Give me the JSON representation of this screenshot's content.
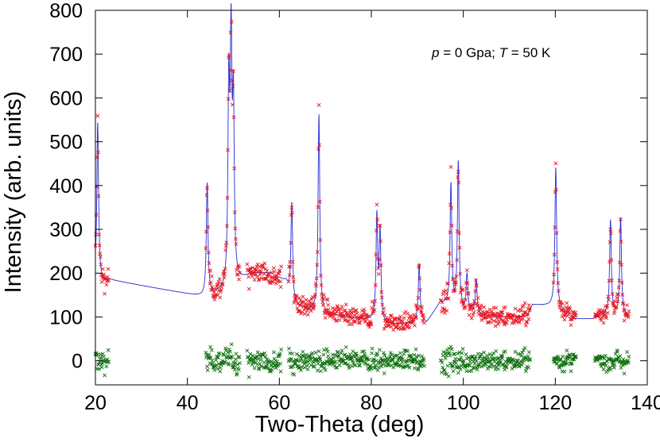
{
  "chart_data": {
    "type": "scatter",
    "xlabel": "Two-Theta (deg)",
    "ylabel": "Intensity (arb. units)",
    "xlim": [
      20,
      140
    ],
    "ylim": [
      -55,
      800
    ],
    "xticks": [
      "20",
      "40",
      "60",
      "80",
      "100",
      "120",
      "140"
    ],
    "yticks": [
      "0",
      "100",
      "200",
      "300",
      "400",
      "500",
      "600",
      "700",
      "800"
    ],
    "annotation": {
      "p_symbol": "p",
      "p_value": " = 0 Gpa; ",
      "t_symbol": "T",
      "t_value": " = 50 K"
    },
    "colors": {
      "observed": "#e8141e",
      "calculated": "#2b2bd6",
      "difference": "#0a6e0a"
    },
    "excluded_regions": [
      [
        23,
        44
      ],
      [
        51.5,
        53
      ],
      [
        60.5,
        62
      ],
      [
        91.5,
        95
      ],
      [
        114.5,
        119.5
      ],
      [
        124.5,
        128.5
      ]
    ],
    "background_points": [
      [
        20,
        190
      ],
      [
        21.5,
        178
      ],
      [
        23,
        185
      ],
      [
        44,
        145
      ],
      [
        45,
        150
      ],
      [
        48,
        158
      ],
      [
        51,
        180
      ],
      [
        54,
        198
      ],
      [
        58,
        200
      ],
      [
        61.5,
        180
      ],
      [
        63,
        128
      ],
      [
        66,
        118
      ],
      [
        70,
        108
      ],
      [
        75,
        98
      ],
      [
        80,
        92
      ],
      [
        83,
        82
      ],
      [
        88,
        85
      ],
      [
        91,
        92
      ],
      [
        92,
        86
      ],
      [
        95,
        132
      ],
      [
        100,
        112
      ],
      [
        105,
        102
      ],
      [
        110,
        100
      ],
      [
        114,
        102
      ],
      [
        115,
        128
      ],
      [
        120,
        125
      ],
      [
        121,
        118
      ],
      [
        124,
        95
      ],
      [
        128,
        95
      ],
      [
        131,
        105
      ],
      [
        136,
        100
      ]
    ],
    "peaks": [
      {
        "x": 20.5,
        "height": 545
      },
      {
        "x": 44.3,
        "height": 405
      },
      {
        "x": 49.0,
        "height": 600
      },
      {
        "x": 49.5,
        "height": 685
      },
      {
        "x": 50.0,
        "height": 560
      },
      {
        "x": 62.7,
        "height": 362
      },
      {
        "x": 68.6,
        "height": 562
      },
      {
        "x": 81.2,
        "height": 325
      },
      {
        "x": 81.9,
        "height": 290
      },
      {
        "x": 90.4,
        "height": 222
      },
      {
        "x": 97.3,
        "height": 402
      },
      {
        "x": 98.9,
        "height": 452
      },
      {
        "x": 100.8,
        "height": 195
      },
      {
        "x": 102.8,
        "height": 185
      },
      {
        "x": 120.1,
        "height": 442
      },
      {
        "x": 132.0,
        "height": 320
      },
      {
        "x": 134.2,
        "height": 325
      }
    ]
  }
}
